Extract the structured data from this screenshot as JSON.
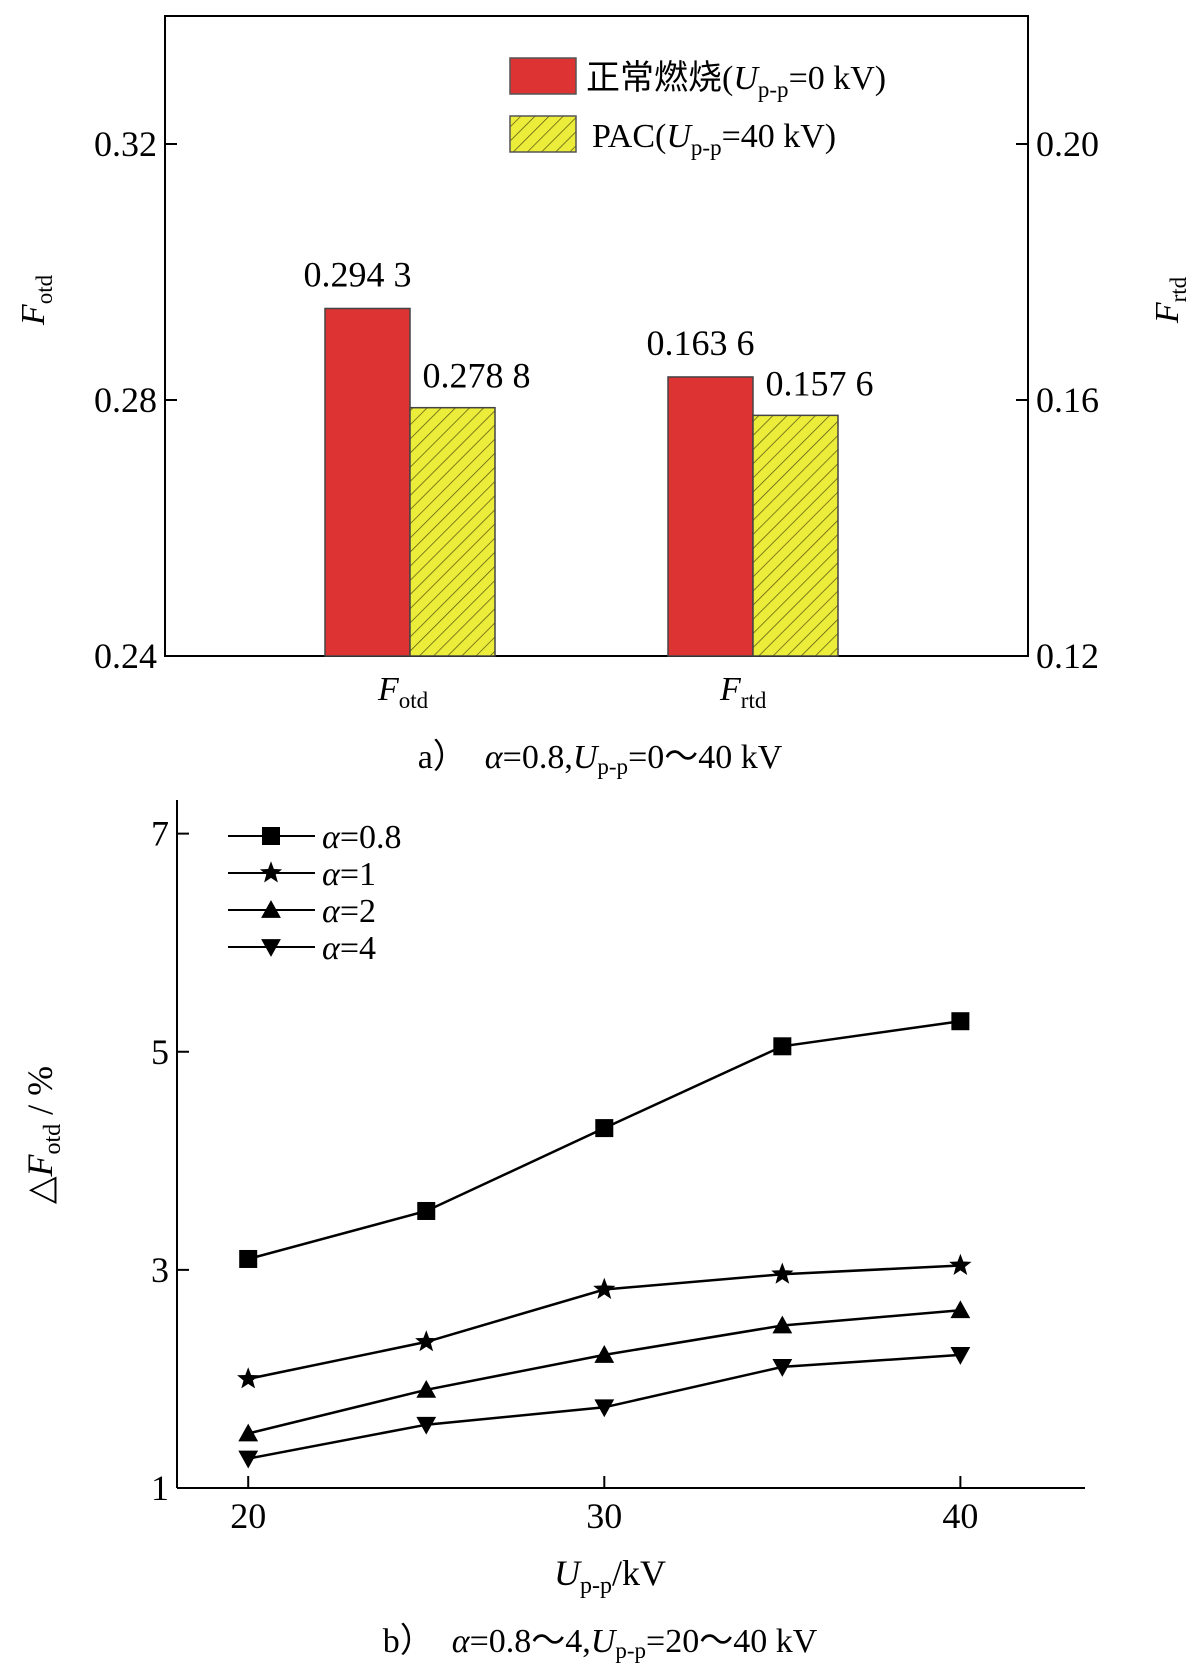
{
  "chart_data": [
    {
      "type": "bar",
      "panel": "a",
      "caption": {
        "prefix": "a）",
        "alpha_sym": "α",
        "alpha_val": "=0.8,",
        "u_sym": "U",
        "u_sub": "p-p",
        "u_rest": "=0～40 kV"
      },
      "categories": [
        {
          "main": "F",
          "sub": "otd"
        },
        {
          "main": "F",
          "sub": "rtd"
        }
      ],
      "left_axis": {
        "label_main": "F",
        "label_sub": "otd",
        "ylim": [
          0.24,
          0.34
        ],
        "ticks": [
          "0.24",
          "0.28",
          "0.32"
        ]
      },
      "right_axis": {
        "label_main": "F",
        "label_sub": "rtd",
        "ylim": [
          0.12,
          0.22
        ],
        "ticks": [
          "0.12",
          "0.16",
          "0.20"
        ]
      },
      "series": [
        {
          "name_prefix": "正常燃烧(",
          "name_u": "U",
          "name_sub": "p-p",
          "name_rest": "=0 kV)",
          "color": "#dd3333",
          "hatch": false,
          "values": [
            0.2943,
            0.1636
          ],
          "labels": [
            "0.294 3",
            "0.163 6"
          ]
        },
        {
          "name_prefix": "PAC(",
          "name_u": "U",
          "name_sub": "p-p",
          "name_rest": "=40 kV)",
          "color": "#ecec3a",
          "hatch": true,
          "values": [
            0.2788,
            0.1576
          ],
          "labels": [
            "0.278 8",
            "0.157 6"
          ]
        }
      ]
    },
    {
      "type": "line",
      "panel": "b",
      "caption": {
        "prefix": "b）",
        "alpha_sym": "α",
        "alpha_val": "=0.8～4,",
        "u_sym": "U",
        "u_sub": "p-p",
        "u_rest": "=20～40 kV"
      },
      "x": [
        20,
        25,
        30,
        35,
        40
      ],
      "xlim": [
        18,
        43.5
      ],
      "ylim": [
        1,
        7.4
      ],
      "xticks": [
        "20",
        "30",
        "40"
      ],
      "yticks": [
        "1",
        "3",
        "5",
        "7"
      ],
      "xlabel": {
        "main": "U",
        "sub": "p-p",
        "rest": "/kV"
      },
      "ylabel": {
        "prefix": "△",
        "main": "F",
        "sub": "otd",
        "rest": " / %"
      },
      "series": [
        {
          "sym": "α",
          "val": "=0.8",
          "marker": "square",
          "values": [
            3.1,
            3.54,
            4.3,
            5.05,
            5.28
          ]
        },
        {
          "sym": "α",
          "val": "=1",
          "marker": "star",
          "values": [
            2.0,
            2.34,
            2.82,
            2.96,
            3.04
          ]
        },
        {
          "sym": "α",
          "val": "=2",
          "marker": "triangle",
          "values": [
            1.5,
            1.9,
            2.22,
            2.49,
            2.63
          ]
        },
        {
          "sym": "α",
          "val": "=4",
          "marker": "tri-down",
          "values": [
            1.27,
            1.58,
            1.74,
            2.11,
            2.22
          ]
        }
      ]
    }
  ]
}
